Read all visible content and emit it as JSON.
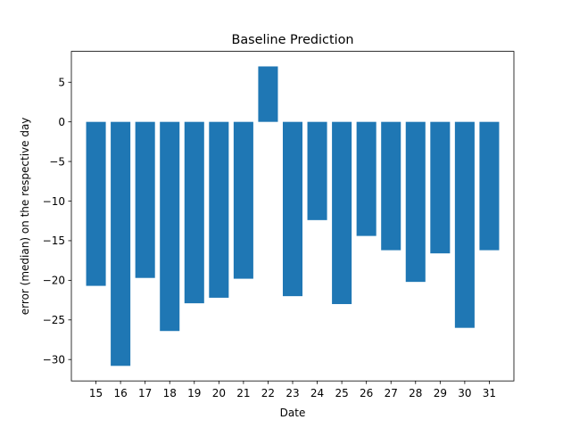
{
  "chart_data": {
    "type": "bar",
    "title": "Baseline Prediction",
    "xlabel": "Date",
    "ylabel": "error (median) on the respective day",
    "categories": [
      "15",
      "16",
      "17",
      "18",
      "19",
      "20",
      "21",
      "22",
      "23",
      "24",
      "25",
      "26",
      "27",
      "28",
      "29",
      "30",
      "31"
    ],
    "values": [
      -20.7,
      -30.8,
      -19.7,
      -26.4,
      -22.9,
      -22.2,
      -19.8,
      7.0,
      -22.0,
      -12.4,
      -23.0,
      -14.4,
      -16.2,
      -20.2,
      -16.6,
      -26.0,
      -16.2
    ],
    "yticks": [
      5,
      0,
      -5,
      -10,
      -15,
      -20,
      -25,
      -30
    ],
    "ytick_labels": [
      "5",
      "0",
      "−5",
      "−10",
      "−15",
      "−20",
      "−25",
      "−30"
    ],
    "ylim": [
      -32.7,
      8.9
    ],
    "bar_color": "#1f77b4",
    "grid": false,
    "legend": "none"
  }
}
